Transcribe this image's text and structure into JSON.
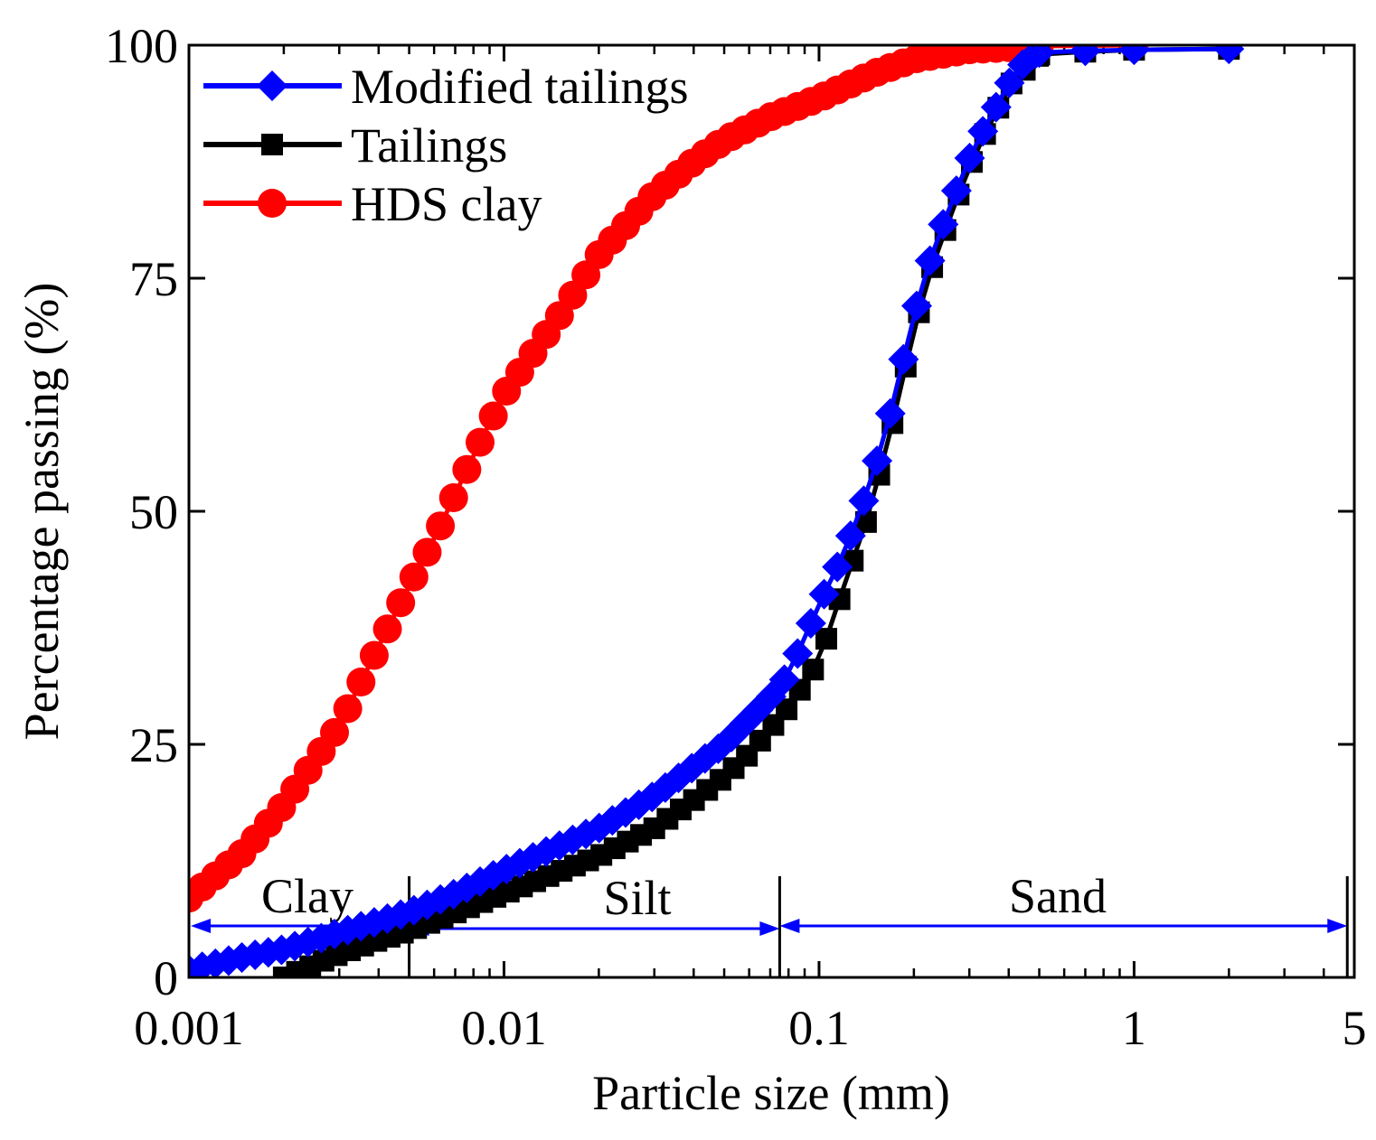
{
  "chart_data": {
    "type": "line",
    "title": "",
    "xlabel": "Particle size (mm)",
    "ylabel": "Percentage passing (%)",
    "xscale": "log",
    "xlim": [
      0.001,
      5
    ],
    "ylim": [
      0,
      100
    ],
    "x_ticks": [
      {
        "value": 0.001,
        "label": "0.001"
      },
      {
        "value": 0.01,
        "label": "0.01"
      },
      {
        "value": 0.1,
        "label": "0.1"
      },
      {
        "value": 1,
        "label": "1"
      },
      {
        "value": 5,
        "label": "5"
      }
    ],
    "y_ticks": [
      {
        "value": 0,
        "label": "0"
      },
      {
        "value": 25,
        "label": "25"
      },
      {
        "value": 50,
        "label": "50"
      },
      {
        "value": 75,
        "label": "75"
      },
      {
        "value": 100,
        "label": "100"
      }
    ],
    "legend_position": "top-left",
    "series": [
      {
        "name": "Modified tailings",
        "color": "#0000ff",
        "marker": "diamond",
        "key_points": [
          [
            0.001,
            0.8
          ],
          [
            0.0015,
            2.2
          ],
          [
            0.002,
            3.0
          ],
          [
            0.003,
            4.8
          ],
          [
            0.005,
            7.0
          ],
          [
            0.007,
            9.0
          ],
          [
            0.01,
            11.5
          ],
          [
            0.02,
            16.0
          ],
          [
            0.03,
            19.5
          ],
          [
            0.05,
            25.0
          ],
          [
            0.07,
            30.0
          ],
          [
            0.08,
            32.5
          ],
          [
            0.1,
            40.0
          ],
          [
            0.12,
            45.5
          ],
          [
            0.14,
            51.5
          ],
          [
            0.16,
            57.5
          ],
          [
            0.18,
            64.5
          ],
          [
            0.2,
            71.0
          ],
          [
            0.23,
            78.0
          ],
          [
            0.27,
            84.0
          ],
          [
            0.31,
            89.0
          ],
          [
            0.36,
            93.0
          ],
          [
            0.41,
            96.5
          ],
          [
            0.47,
            99.0
          ],
          [
            0.5,
            99.2
          ],
          [
            0.7,
            99.4
          ],
          [
            1.0,
            99.5
          ],
          [
            2.0,
            99.6
          ]
        ]
      },
      {
        "name": "Tailings",
        "color": "#000000",
        "marker": "square",
        "key_points": [
          [
            0.002,
            0.0
          ],
          [
            0.003,
            2.5
          ],
          [
            0.004,
            4.0
          ],
          [
            0.005,
            5.0
          ],
          [
            0.01,
            9.0
          ],
          [
            0.02,
            13.0
          ],
          [
            0.03,
            16.0
          ],
          [
            0.04,
            19.0
          ],
          [
            0.05,
            21.5
          ],
          [
            0.06,
            24.0
          ],
          [
            0.08,
            29.0
          ],
          [
            0.1,
            34.0
          ],
          [
            0.12,
            42.0
          ],
          [
            0.14,
            48.5
          ],
          [
            0.16,
            55.5
          ],
          [
            0.18,
            62.5
          ],
          [
            0.2,
            69.5
          ],
          [
            0.23,
            76.5
          ],
          [
            0.27,
            83.0
          ],
          [
            0.31,
            88.0
          ],
          [
            0.36,
            92.5
          ],
          [
            0.41,
            96.0
          ],
          [
            0.47,
            98.0
          ],
          [
            0.5,
            99.0
          ],
          [
            0.7,
            99.3
          ],
          [
            1.0,
            99.5
          ],
          [
            2.0,
            99.6
          ]
        ]
      },
      {
        "name": "HDS clay",
        "color": "#ff0000",
        "marker": "circle",
        "key_points": [
          [
            0.001,
            8.5
          ],
          [
            0.0015,
            13.5
          ],
          [
            0.002,
            18.5
          ],
          [
            0.003,
            27.0
          ],
          [
            0.004,
            35.5
          ],
          [
            0.005,
            42.0
          ],
          [
            0.006,
            47.0
          ],
          [
            0.008,
            56.0
          ],
          [
            0.01,
            62.5
          ],
          [
            0.015,
            71.0
          ],
          [
            0.02,
            77.5
          ],
          [
            0.03,
            84.0
          ],
          [
            0.04,
            87.5
          ],
          [
            0.05,
            89.8
          ],
          [
            0.07,
            92.3
          ],
          [
            0.1,
            94.3
          ],
          [
            0.15,
            97.0
          ],
          [
            0.2,
            98.5
          ],
          [
            0.3,
            99.5
          ],
          [
            0.5,
            99.9
          ],
          [
            1.0,
            100.0
          ]
        ]
      }
    ],
    "annotations": [
      {
        "text": "Clay",
        "range": [
          0.001,
          0.005
        ]
      },
      {
        "text": "Silt",
        "range": [
          0.005,
          0.075
        ]
      },
      {
        "text": "Sand",
        "range": [
          0.075,
          4.75
        ]
      }
    ],
    "annotation_color": "#0000ff"
  }
}
